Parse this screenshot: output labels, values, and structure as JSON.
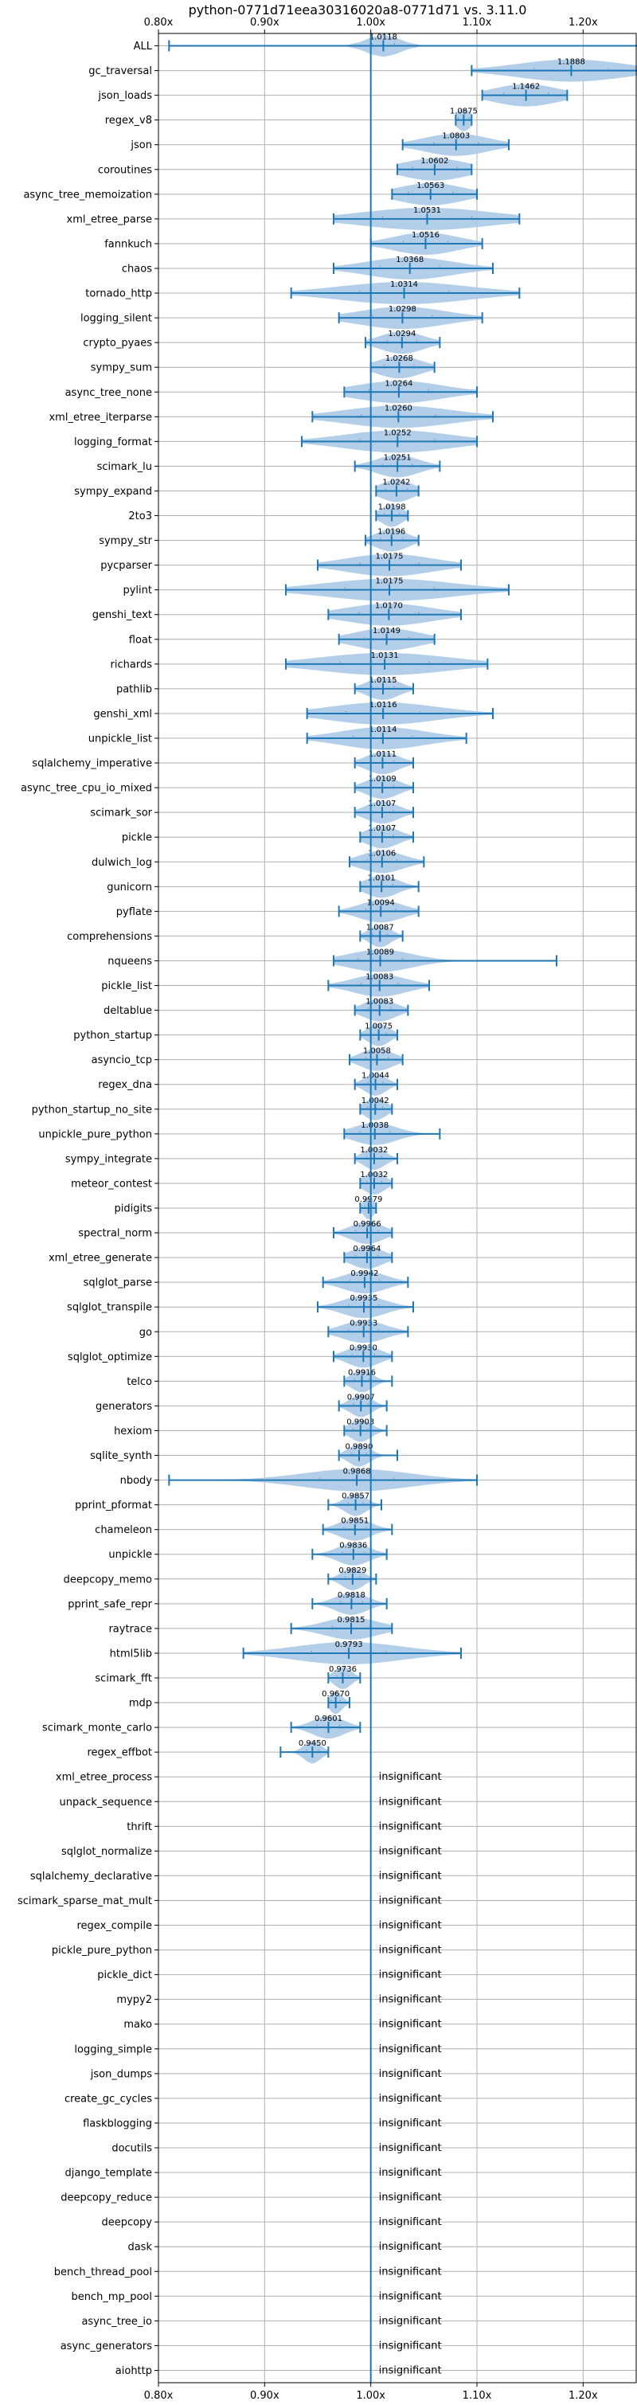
{
  "chart_data": {
    "type": "violin",
    "title": "python-0771d71eea30316020a8-0771d71 vs. 3.11.0",
    "xlim": [
      0.8,
      1.25
    ],
    "xticks": [
      0.8,
      0.9,
      1.0,
      1.1,
      1.2
    ],
    "xtick_labels": [
      "0.80x",
      "0.90x",
      "1.00x",
      "1.10x",
      "1.20x"
    ],
    "reference_line": 1.0,
    "grid": true,
    "insignificant_label": "insignificant",
    "colors": {
      "violin": "#aecbe8",
      "whisker": "#1f77b4",
      "grid": "#b0b0b0"
    },
    "benchmarks": [
      {
        "name": "ALL",
        "value": 1.0118,
        "label": "1.0118",
        "min": 0.81,
        "max": 1.26,
        "spread": 0.015
      },
      {
        "name": "gc_traversal",
        "value": 1.1888,
        "label": "1.1888",
        "min": 1.095,
        "max": 1.26,
        "spread": 0.05
      },
      {
        "name": "json_loads",
        "value": 1.1462,
        "label": "1.1462",
        "min": 1.105,
        "max": 1.185,
        "spread": 0.03
      },
      {
        "name": "regex_v8",
        "value": 1.0875,
        "label": "1.0875",
        "min": 1.08,
        "max": 1.095,
        "spread": 0.007
      },
      {
        "name": "json",
        "value": 1.0803,
        "label": "1.0803",
        "min": 1.03,
        "max": 1.13,
        "spread": 0.03
      },
      {
        "name": "coroutines",
        "value": 1.0602,
        "label": "1.0602",
        "min": 1.025,
        "max": 1.095,
        "spread": 0.03
      },
      {
        "name": "async_tree_memoization",
        "value": 1.0563,
        "label": "1.0563",
        "min": 1.02,
        "max": 1.1,
        "spread": 0.03
      },
      {
        "name": "xml_etree_parse",
        "value": 1.0531,
        "label": "1.0531",
        "min": 0.965,
        "max": 1.14,
        "spread": 0.06
      },
      {
        "name": "fannkuch",
        "value": 1.0516,
        "label": "1.0516",
        "min": 1.0,
        "max": 1.105,
        "spread": 0.03
      },
      {
        "name": "chaos",
        "value": 1.0368,
        "label": "1.0368",
        "min": 0.965,
        "max": 1.115,
        "spread": 0.04
      },
      {
        "name": "tornado_http",
        "value": 1.0314,
        "label": "1.0314",
        "min": 0.925,
        "max": 1.14,
        "spread": 0.06
      },
      {
        "name": "logging_silent",
        "value": 1.0298,
        "label": "1.0298",
        "min": 0.97,
        "max": 1.105,
        "spread": 0.04
      },
      {
        "name": "crypto_pyaes",
        "value": 1.0294,
        "label": "1.0294",
        "min": 0.995,
        "max": 1.065,
        "spread": 0.02
      },
      {
        "name": "sympy_sum",
        "value": 1.0268,
        "label": "1.0268",
        "min": 1.0,
        "max": 1.06,
        "spread": 0.02
      },
      {
        "name": "async_tree_none",
        "value": 1.0264,
        "label": "1.0264",
        "min": 0.975,
        "max": 1.1,
        "spread": 0.04
      },
      {
        "name": "xml_etree_iterparse",
        "value": 1.026,
        "label": "1.0260",
        "min": 0.945,
        "max": 1.115,
        "spread": 0.05
      },
      {
        "name": "logging_format",
        "value": 1.0252,
        "label": "1.0252",
        "min": 0.935,
        "max": 1.1,
        "spread": 0.05
      },
      {
        "name": "scimark_lu",
        "value": 1.0251,
        "label": "1.0251",
        "min": 0.985,
        "max": 1.065,
        "spread": 0.02
      },
      {
        "name": "sympy_expand",
        "value": 1.0242,
        "label": "1.0242",
        "min": 1.005,
        "max": 1.045,
        "spread": 0.015
      },
      {
        "name": "2to3",
        "value": 1.0198,
        "label": "1.0198",
        "min": 1.005,
        "max": 1.035,
        "spread": 0.01
      },
      {
        "name": "sympy_str",
        "value": 1.0196,
        "label": "1.0196",
        "min": 0.995,
        "max": 1.045,
        "spread": 0.015
      },
      {
        "name": "pycparser",
        "value": 1.0175,
        "label": "1.0175",
        "min": 0.95,
        "max": 1.085,
        "spread": 0.04
      },
      {
        "name": "pylint",
        "value": 1.0175,
        "label": "1.0175",
        "min": 0.92,
        "max": 1.13,
        "spread": 0.06
      },
      {
        "name": "genshi_text",
        "value": 1.017,
        "label": "1.0170",
        "min": 0.96,
        "max": 1.085,
        "spread": 0.04
      },
      {
        "name": "float",
        "value": 1.0149,
        "label": "1.0149",
        "min": 0.97,
        "max": 1.06,
        "spread": 0.03
      },
      {
        "name": "richards",
        "value": 1.0131,
        "label": "1.0131",
        "min": 0.92,
        "max": 1.11,
        "spread": 0.06
      },
      {
        "name": "pathlib",
        "value": 1.0115,
        "label": "1.0115",
        "min": 0.985,
        "max": 1.04,
        "spread": 0.015
      },
      {
        "name": "genshi_xml",
        "value": 1.0116,
        "label": "1.0116",
        "min": 0.94,
        "max": 1.115,
        "spread": 0.05
      },
      {
        "name": "unpickle_list",
        "value": 1.0114,
        "label": "1.0114",
        "min": 0.94,
        "max": 1.09,
        "spread": 0.04
      },
      {
        "name": "sqlalchemy_imperative",
        "value": 1.0111,
        "label": "1.0111",
        "min": 0.985,
        "max": 1.04,
        "spread": 0.015
      },
      {
        "name": "async_tree_cpu_io_mixed",
        "value": 1.0109,
        "label": "1.0109",
        "min": 0.985,
        "max": 1.04,
        "spread": 0.015
      },
      {
        "name": "scimark_sor",
        "value": 1.0107,
        "label": "1.0107",
        "min": 0.985,
        "max": 1.04,
        "spread": 0.015
      },
      {
        "name": "pickle",
        "value": 1.0107,
        "label": "1.0107",
        "min": 0.99,
        "max": 1.04,
        "spread": 0.015
      },
      {
        "name": "dulwich_log",
        "value": 1.0106,
        "label": "1.0106",
        "min": 0.98,
        "max": 1.05,
        "spread": 0.02
      },
      {
        "name": "gunicorn",
        "value": 1.0101,
        "label": "1.0101",
        "min": 0.99,
        "max": 1.045,
        "spread": 0.015
      },
      {
        "name": "pyflate",
        "value": 1.0094,
        "label": "1.0094",
        "min": 0.97,
        "max": 1.045,
        "spread": 0.02
      },
      {
        "name": "comprehensions",
        "value": 1.0087,
        "label": "1.0087",
        "min": 0.99,
        "max": 1.03,
        "spread": 0.01
      },
      {
        "name": "nqueens",
        "value": 1.0089,
        "label": "1.0089",
        "min": 0.965,
        "max": 1.175,
        "spread": 0.03
      },
      {
        "name": "pickle_list",
        "value": 1.0083,
        "label": "1.0083",
        "min": 0.96,
        "max": 1.055,
        "spread": 0.025
      },
      {
        "name": "deltablue",
        "value": 1.0083,
        "label": "1.0083",
        "min": 0.985,
        "max": 1.035,
        "spread": 0.015
      },
      {
        "name": "python_startup",
        "value": 1.0075,
        "label": "1.0075",
        "min": 0.99,
        "max": 1.025,
        "spread": 0.01
      },
      {
        "name": "asyncio_tcp",
        "value": 1.0058,
        "label": "1.0058",
        "min": 0.98,
        "max": 1.03,
        "spread": 0.015
      },
      {
        "name": "regex_dna",
        "value": 1.0044,
        "label": "1.0044",
        "min": 0.985,
        "max": 1.025,
        "spread": 0.01
      },
      {
        "name": "python_startup_no_site",
        "value": 1.0042,
        "label": "1.0042",
        "min": 0.99,
        "max": 1.02,
        "spread": 0.01
      },
      {
        "name": "unpickle_pure_python",
        "value": 1.0038,
        "label": "1.0038",
        "min": 0.975,
        "max": 1.065,
        "spread": 0.02
      },
      {
        "name": "sympy_integrate",
        "value": 1.0032,
        "label": "1.0032",
        "min": 0.985,
        "max": 1.025,
        "spread": 0.01
      },
      {
        "name": "meteor_contest",
        "value": 1.0032,
        "label": "1.0032",
        "min": 0.99,
        "max": 1.02,
        "spread": 0.01
      },
      {
        "name": "pidigits",
        "value": 0.9979,
        "label": "0.9979",
        "min": 0.99,
        "max": 1.005,
        "spread": 0.005
      },
      {
        "name": "spectral_norm",
        "value": 0.9966,
        "label": "0.9966",
        "min": 0.965,
        "max": 1.02,
        "spread": 0.015
      },
      {
        "name": "xml_etree_generate",
        "value": 0.9964,
        "label": "0.9964",
        "min": 0.975,
        "max": 1.02,
        "spread": 0.015
      },
      {
        "name": "sqlglot_parse",
        "value": 0.9942,
        "label": "0.9942",
        "min": 0.955,
        "max": 1.035,
        "spread": 0.02
      },
      {
        "name": "sqlglot_transpile",
        "value": 0.9935,
        "label": "0.9935",
        "min": 0.95,
        "max": 1.04,
        "spread": 0.02
      },
      {
        "name": "go",
        "value": 0.9933,
        "label": "0.9933",
        "min": 0.96,
        "max": 1.035,
        "spread": 0.02
      },
      {
        "name": "sqlglot_optimize",
        "value": 0.993,
        "label": "0.9930",
        "min": 0.965,
        "max": 1.02,
        "spread": 0.015
      },
      {
        "name": "telco",
        "value": 0.9916,
        "label": "0.9916",
        "min": 0.975,
        "max": 1.02,
        "spread": 0.01
      },
      {
        "name": "generators",
        "value": 0.9907,
        "label": "0.9907",
        "min": 0.97,
        "max": 1.015,
        "spread": 0.01
      },
      {
        "name": "hexiom",
        "value": 0.9903,
        "label": "0.9903",
        "min": 0.975,
        "max": 1.015,
        "spread": 0.01
      },
      {
        "name": "sqlite_synth",
        "value": 0.989,
        "label": "0.9890",
        "min": 0.97,
        "max": 1.025,
        "spread": 0.01
      },
      {
        "name": "nbody",
        "value": 0.9868,
        "label": "0.9868",
        "min": 0.81,
        "max": 1.1,
        "spread": 0.05
      },
      {
        "name": "pprint_pformat",
        "value": 0.9857,
        "label": "0.9857",
        "min": 0.96,
        "max": 1.01,
        "spread": 0.01
      },
      {
        "name": "chameleon",
        "value": 0.9851,
        "label": "0.9851",
        "min": 0.955,
        "max": 1.02,
        "spread": 0.015
      },
      {
        "name": "unpickle",
        "value": 0.9836,
        "label": "0.9836",
        "min": 0.945,
        "max": 1.015,
        "spread": 0.015
      },
      {
        "name": "deepcopy_memo",
        "value": 0.9829,
        "label": "0.9829",
        "min": 0.96,
        "max": 1.005,
        "spread": 0.01
      },
      {
        "name": "pprint_safe_repr",
        "value": 0.9818,
        "label": "0.9818",
        "min": 0.945,
        "max": 1.015,
        "spread": 0.015
      },
      {
        "name": "raytrace",
        "value": 0.9815,
        "label": "0.9815",
        "min": 0.925,
        "max": 1.02,
        "spread": 0.025
      },
      {
        "name": "html5lib",
        "value": 0.9793,
        "label": "0.9793",
        "min": 0.88,
        "max": 1.085,
        "spread": 0.05
      },
      {
        "name": "scimark_fft",
        "value": 0.9736,
        "label": "0.9736",
        "min": 0.96,
        "max": 0.99,
        "spread": 0.008
      },
      {
        "name": "mdp",
        "value": 0.967,
        "label": "0.9670",
        "min": 0.96,
        "max": 0.98,
        "spread": 0.006
      },
      {
        "name": "scimark_monte_carlo",
        "value": 0.9601,
        "label": "0.9601",
        "min": 0.925,
        "max": 0.99,
        "spread": 0.015
      },
      {
        "name": "regex_effbot",
        "value": 0.945,
        "label": "0.9450",
        "min": 0.915,
        "max": 0.96,
        "spread": 0.008
      },
      {
        "name": "xml_etree_process",
        "insignificant": true
      },
      {
        "name": "unpack_sequence",
        "insignificant": true
      },
      {
        "name": "thrift",
        "insignificant": true
      },
      {
        "name": "sqlglot_normalize",
        "insignificant": true
      },
      {
        "name": "sqlalchemy_declarative",
        "insignificant": true
      },
      {
        "name": "scimark_sparse_mat_mult",
        "insignificant": true
      },
      {
        "name": "regex_compile",
        "insignificant": true
      },
      {
        "name": "pickle_pure_python",
        "insignificant": true
      },
      {
        "name": "pickle_dict",
        "insignificant": true
      },
      {
        "name": "mypy2",
        "insignificant": true
      },
      {
        "name": "mako",
        "insignificant": true
      },
      {
        "name": "logging_simple",
        "insignificant": true
      },
      {
        "name": "json_dumps",
        "insignificant": true
      },
      {
        "name": "create_gc_cycles",
        "insignificant": true
      },
      {
        "name": "flaskblogging",
        "insignificant": true
      },
      {
        "name": "docutils",
        "insignificant": true
      },
      {
        "name": "django_template",
        "insignificant": true
      },
      {
        "name": "deepcopy_reduce",
        "insignificant": true
      },
      {
        "name": "deepcopy",
        "insignificant": true
      },
      {
        "name": "dask",
        "insignificant": true
      },
      {
        "name": "bench_thread_pool",
        "insignificant": true
      },
      {
        "name": "bench_mp_pool",
        "insignificant": true
      },
      {
        "name": "async_tree_io",
        "insignificant": true
      },
      {
        "name": "async_generators",
        "insignificant": true
      },
      {
        "name": "aiohttp",
        "insignificant": true
      }
    ]
  }
}
